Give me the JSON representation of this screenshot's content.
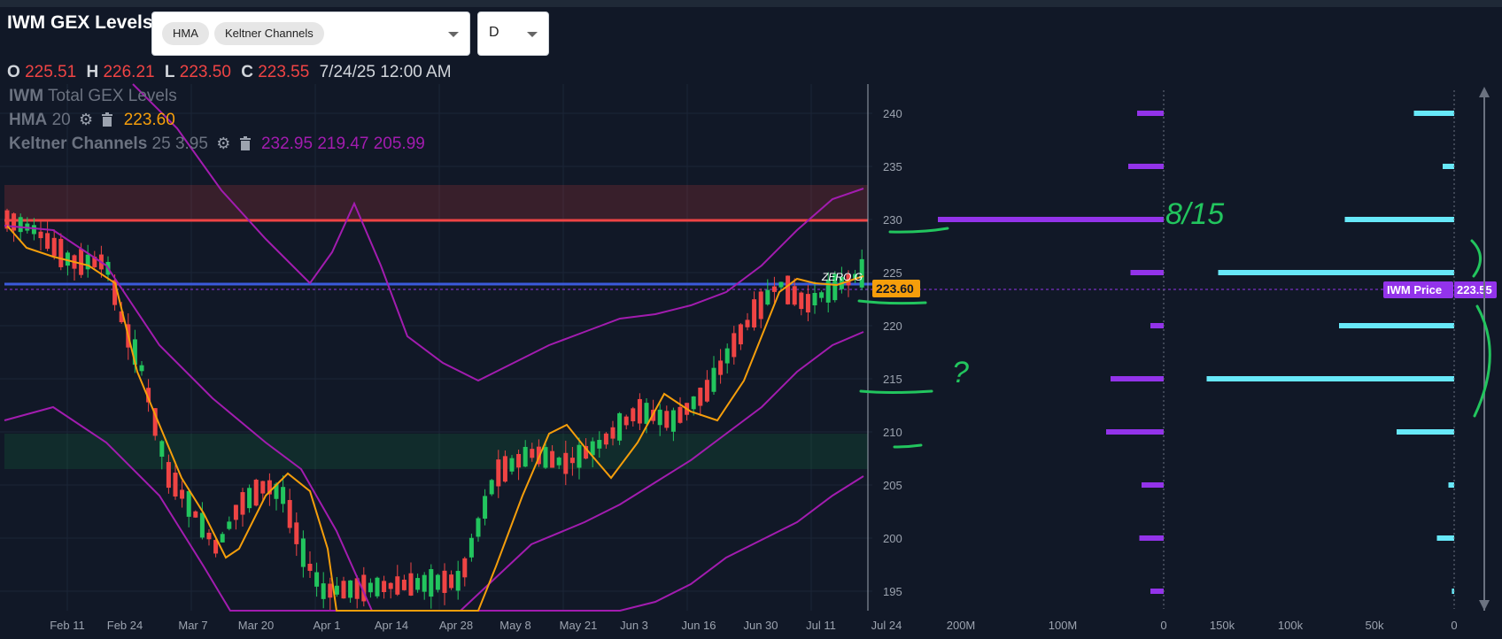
{
  "app": {
    "title": "IWM GEX Levels"
  },
  "indicator_select": {
    "chips": [
      "HMA",
      "Keltner Channels"
    ]
  },
  "timeframe_select": {
    "value": "D"
  },
  "ohlc": {
    "o_label": "O",
    "o": "225.51",
    "h_label": "H",
    "h": "226.21",
    "l_label": "L",
    "l": "223.50",
    "c_label": "C",
    "c": "223.55",
    "datetime": "7/24/25 12:00 AM"
  },
  "legend": {
    "line1_a": "IWM",
    "line1_b": "Total GEX Levels",
    "hma_name": "HMA",
    "hma_param": "20",
    "hma_value": "223.60",
    "kc_name": "Keltner Channels",
    "kc_params": "25 3.95",
    "kc_values": "232.95 219.47 205.99"
  },
  "price_axis": {
    "ticks": [
      "240",
      "235",
      "230",
      "225",
      "220",
      "215",
      "210",
      "205",
      "200",
      "195"
    ]
  },
  "date_axis": {
    "ticks": [
      "Feb 11",
      "Feb 24",
      "Mar 7",
      "Mar 20",
      "Apr 1",
      "Apr 14",
      "Apr 28",
      "May 8",
      "May 21",
      "Jun 3",
      "Jun 16",
      "Jun 30",
      "Jul 11",
      "Jul 24"
    ]
  },
  "gex_axis": {
    "ticks": [
      "200M",
      "100M",
      "0"
    ]
  },
  "oi_axis": {
    "ticks": [
      "150k",
      "100k",
      "50k",
      "0"
    ]
  },
  "labels": {
    "zero_gamma": "ZERO G",
    "hma_badge": "223.60",
    "price_badge_label": "IWM Price",
    "price_badge_value": "223.55"
  },
  "annotations": {
    "handwritten_date": "8/15",
    "question": "?"
  },
  "colors": {
    "bg": "#111827",
    "up": "#22c55e",
    "down": "#ef4444",
    "hma": "#f59e0b",
    "keltner": "#a21caf",
    "gex": "#9333ea",
    "oi": "#67e8f9",
    "resistance": "#ef4444",
    "zero_gamma": "#3b5bdb",
    "badge_hma": "#f59e0b",
    "badge_price": "#9333ea",
    "annotation": "#22c55e"
  },
  "chart_data": [
    {
      "type": "candlestick",
      "title": "IWM Total GEX Levels",
      "x_range": [
        "Feb 11",
        "Jul 24"
      ],
      "ylim": [
        193,
        243
      ],
      "key_levels": {
        "resistance": 230,
        "zero_gamma": 224,
        "support_zone": [
          207,
          210
        ],
        "resistance_zone": [
          230,
          233.5
        ]
      },
      "last": {
        "open": 225.51,
        "high": 226.21,
        "low": 223.5,
        "close": 223.55,
        "hma20": 223.6
      },
      "keltner_last": {
        "upper": 232.95,
        "middle": 219.47,
        "lower": 205.99
      }
    },
    {
      "type": "bar",
      "orientation": "horizontal",
      "categories": [
        "240",
        "235",
        "230",
        "225",
        "220",
        "215",
        "210",
        "205",
        "200",
        "195"
      ],
      "values_gex": [
        60,
        80,
        510,
        75,
        30,
        120,
        130,
        50,
        55,
        30
      ],
      "values_oi": [
        35,
        10,
        95,
        205,
        100,
        215,
        50,
        5,
        15,
        2
      ]
    }
  ]
}
